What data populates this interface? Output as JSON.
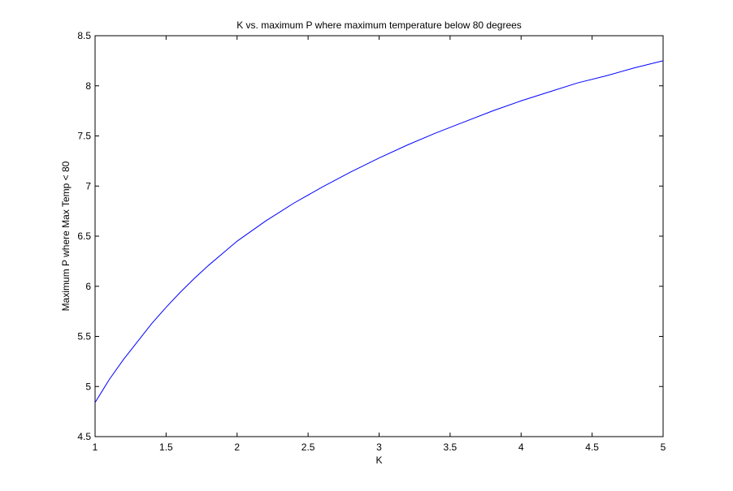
{
  "chart_data": {
    "type": "line",
    "title": "K vs. maximum P where maximum temperature below 80 degrees",
    "xlabel": "K",
    "ylabel": "Maximum P where Max Temp < 80",
    "xlim": [
      1,
      5
    ],
    "ylim": [
      4.5,
      8.5
    ],
    "x_ticks": [
      "1",
      "1.5",
      "2",
      "2.5",
      "3",
      "3.5",
      "4",
      "4.5",
      "5"
    ],
    "y_ticks": [
      "4.5",
      "5",
      "5.5",
      "6",
      "6.5",
      "7",
      "7.5",
      "8",
      "8.5"
    ],
    "grid": false,
    "legend": "none",
    "series_color": "#0000ff",
    "series": [
      {
        "x": [
          1.0,
          1.1,
          1.2,
          1.3,
          1.4,
          1.5,
          1.6,
          1.7,
          1.8,
          1.9,
          2.0,
          2.2,
          2.4,
          2.6,
          2.8,
          3.0,
          3.2,
          3.4,
          3.6,
          3.8,
          4.0,
          4.2,
          4.4,
          4.6,
          4.8,
          5.0
        ],
        "y": [
          4.84,
          5.07,
          5.27,
          5.45,
          5.63,
          5.79,
          5.94,
          6.08,
          6.21,
          6.33,
          6.45,
          6.65,
          6.83,
          6.99,
          7.14,
          7.28,
          7.41,
          7.53,
          7.64,
          7.75,
          7.85,
          7.94,
          8.03,
          8.1,
          8.18,
          8.25
        ]
      }
    ]
  }
}
